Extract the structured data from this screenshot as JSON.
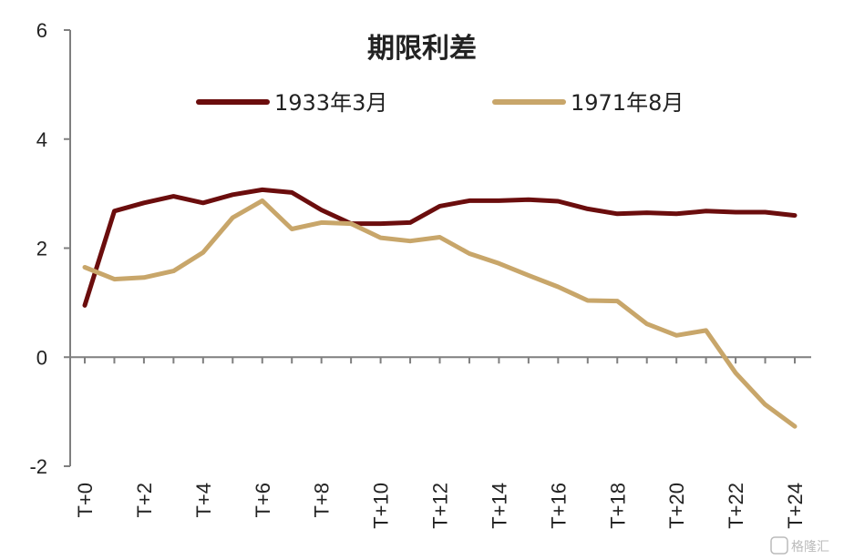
{
  "chart_data": {
    "type": "line",
    "title": "期限利差",
    "x": [
      "T+0",
      "T+1",
      "T+2",
      "T+3",
      "T+4",
      "T+5",
      "T+6",
      "T+7",
      "T+8",
      "T+9",
      "T+10",
      "T+11",
      "T+12",
      "T+13",
      "T+14",
      "T+15",
      "T+16",
      "T+17",
      "T+18",
      "T+19",
      "T+20",
      "T+21",
      "T+22",
      "T+23",
      "T+24"
    ],
    "x_tick_labels": [
      "T+0",
      "T+2",
      "T+4",
      "T+6",
      "T+8",
      "T+10",
      "T+12",
      "T+14",
      "T+16",
      "T+18",
      "T+20",
      "T+22",
      "T+24"
    ],
    "ylim": [
      -2,
      6
    ],
    "y_ticks": [
      -2,
      0,
      2,
      4,
      6
    ],
    "legend_placement": "top",
    "grid": false,
    "series": [
      {
        "name": "1933年3月",
        "color": "#6b0d0d",
        "values": [
          0.95,
          2.68,
          2.83,
          2.95,
          2.83,
          2.98,
          3.07,
          3.02,
          2.7,
          2.45,
          2.45,
          2.47,
          2.77,
          2.87,
          2.87,
          2.89,
          2.86,
          2.72,
          2.63,
          2.65,
          2.63,
          2.68,
          2.66,
          2.66,
          2.6
        ]
      },
      {
        "name": "1971年8月",
        "color": "#c8a66a",
        "values": [
          1.65,
          1.43,
          1.46,
          1.58,
          1.92,
          2.56,
          2.87,
          2.35,
          2.47,
          2.45,
          2.19,
          2.13,
          2.2,
          1.9,
          1.72,
          1.5,
          1.29,
          1.04,
          1.03,
          0.61,
          0.4,
          0.49,
          -0.29,
          -0.87,
          -1.27
        ]
      }
    ]
  },
  "watermark": "格隆汇"
}
